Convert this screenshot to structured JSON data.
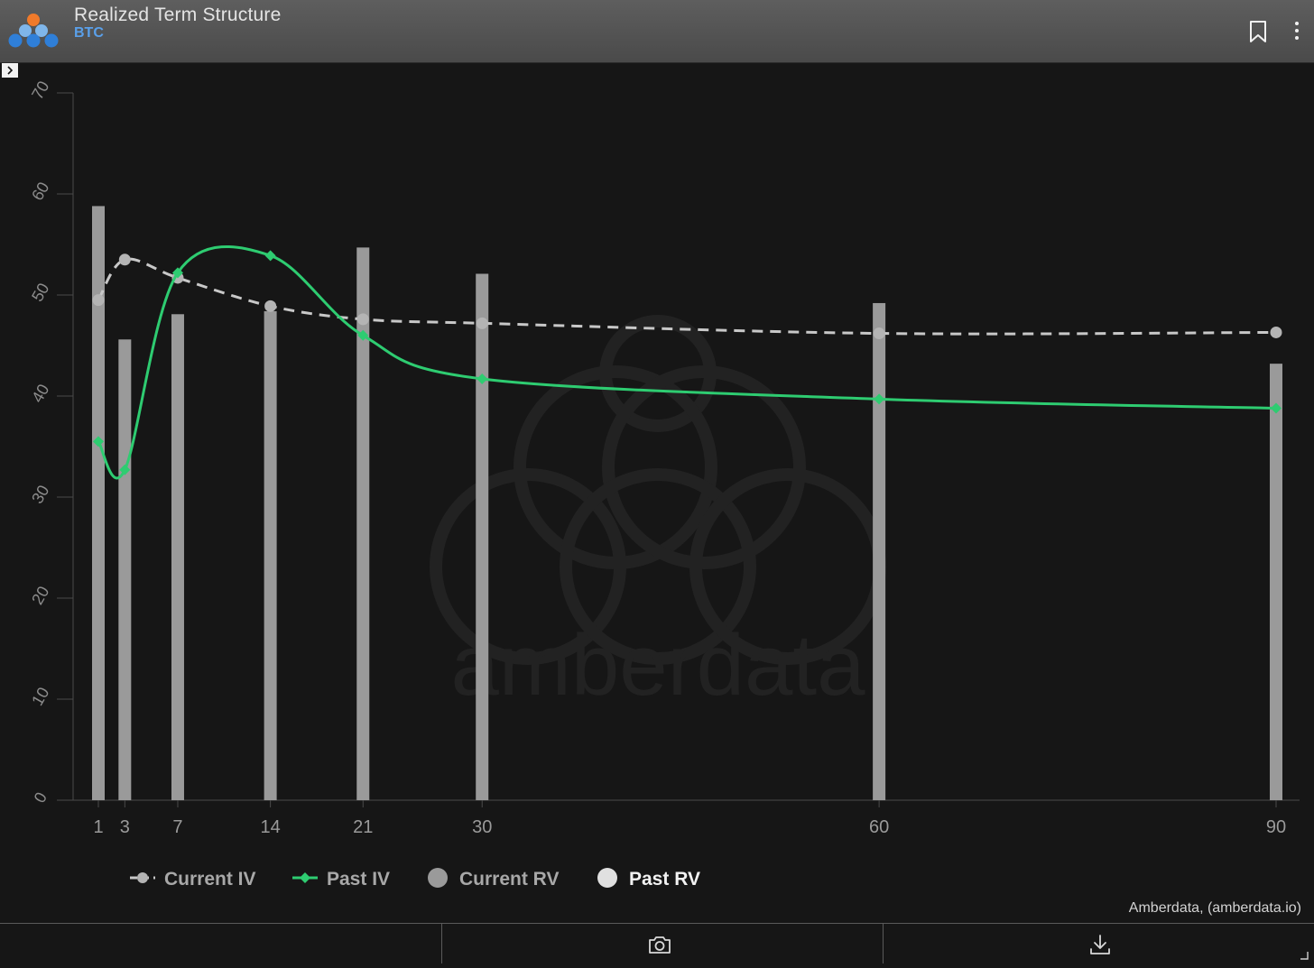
{
  "window": {
    "title": "Realized Term Structure",
    "subtitle": "BTC",
    "attribution": "Amberdata, (amberdata.io)",
    "watermark": "amberdata"
  },
  "colors": {
    "titlebar": "#555555",
    "background": "#161616",
    "current_iv": "#c8c8c8",
    "past_iv": "#2ecc71",
    "current_rv": "#9a9a9a",
    "past_rv": "#e0e0e0",
    "accent_blue": "#5aa0ea",
    "logo_orange": "#f07a2a",
    "logo_blue": "#2f7fd8"
  },
  "icons": {
    "header": [
      "amberdata-logo-icon",
      "bookmark-icon",
      "kebab-menu-icon"
    ],
    "footer": [
      "camera-icon",
      "download-icon"
    ],
    "toggle": "chevron-right-icon"
  },
  "chart_data": {
    "type": "bar",
    "x_ticks": [
      1,
      3,
      7,
      14,
      21,
      30,
      60,
      90
    ],
    "y_ticks": [
      0,
      10,
      20,
      30,
      40,
      50,
      60,
      70
    ],
    "xlim": [
      0,
      91
    ],
    "ylim": [
      0,
      70
    ],
    "grid": false,
    "legend_position": "bottom-left",
    "series": [
      {
        "name": "Current IV",
        "kind": "line-dashed",
        "color": "#c8c8c8",
        "x": [
          1,
          3,
          7,
          14,
          21,
          30,
          60,
          90
        ],
        "y": [
          49.5,
          53.5,
          51.7,
          48.9,
          47.6,
          47.2,
          46.2,
          46.3
        ]
      },
      {
        "name": "Past IV",
        "kind": "line-smooth",
        "color": "#2ecc71",
        "x": [
          1,
          3,
          7,
          14,
          21,
          30,
          60,
          90
        ],
        "y": [
          35.5,
          32.7,
          52.2,
          53.9,
          46.0,
          41.7,
          39.7,
          38.8
        ]
      },
      {
        "name": "Current RV",
        "kind": "bar",
        "color": "#9a9a9a",
        "x": [
          1,
          3,
          7,
          14,
          21,
          30,
          60,
          90
        ],
        "y": [
          58.8,
          45.6,
          48.1,
          48.4,
          54.7,
          52.1,
          49.2,
          43.2
        ]
      },
      {
        "name": "Past RV",
        "kind": "bar",
        "color": "#e0e0e0",
        "x": [],
        "y": []
      }
    ],
    "legend": [
      {
        "label": "Current IV",
        "symbol": "dashed-circle"
      },
      {
        "label": "Past IV",
        "symbol": "line-diamond"
      },
      {
        "label": "Current RV",
        "symbol": "circle"
      },
      {
        "label": "Past RV",
        "symbol": "circle"
      }
    ]
  }
}
